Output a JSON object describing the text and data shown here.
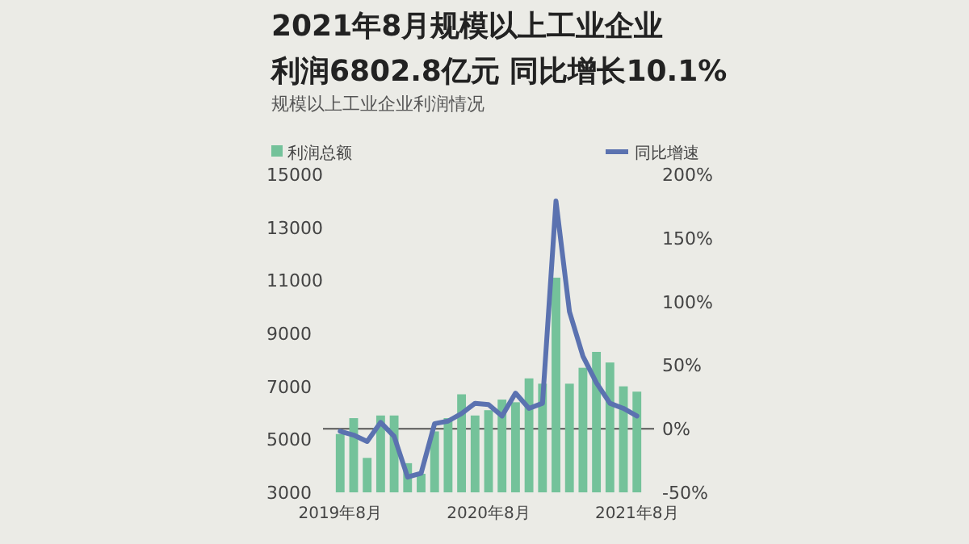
{
  "chart_data": {
    "type": "bar",
    "title": "2021年8月规模以上工业企业利润6802.8亿元 同比增长10.1%",
    "subtitle": "规模以上工业企业利润情况",
    "categories": [
      "2019年8月",
      null,
      null,
      null,
      null,
      null,
      null,
      null,
      null,
      null,
      null,
      "2020年8月",
      null,
      null,
      null,
      null,
      null,
      null,
      null,
      null,
      null,
      null,
      "2021年8月"
    ],
    "series": [
      {
        "name": "利润总额",
        "color": "#74c29a",
        "values": [
          5200,
          5800,
          4300,
          5900,
          5900,
          4100,
          3700,
          5300,
          5800,
          6700,
          5900,
          6100,
          6500,
          6400,
          7300,
          7100,
          11100,
          7100,
          7700,
          8300,
          7900,
          7000,
          6800
        ]
      },
      {
        "name": "同比增速",
        "type": "line",
        "axis": "y2",
        "color": "#5b72b0",
        "values": [
          -2,
          -5,
          -10,
          5,
          -6,
          -38,
          -35,
          4,
          6,
          12,
          20,
          19,
          10,
          28,
          16,
          20,
          179,
          92,
          57,
          36,
          20,
          16,
          10
        ]
      }
    ],
    "ylim": [
      3000,
      15000
    ],
    "yticks": [
      3000,
      5000,
      7000,
      9000,
      11000,
      13000,
      15000
    ],
    "y2lim": [
      -50,
      200
    ],
    "y2ticks": [
      {
        "value": -50,
        "label": "-50%"
      },
      {
        "value": 0,
        "label": "0%"
      },
      {
        "value": 50,
        "label": "50%"
      },
      {
        "value": 100,
        "label": "100%"
      },
      {
        "value": 150,
        "label": "150%"
      },
      {
        "value": 200,
        "label": "200%"
      }
    ],
    "ref_lines": [
      {
        "axis": "y2",
        "value": 0,
        "color": "#555555"
      }
    ],
    "legend": "top",
    "grid": false,
    "marker": "none",
    "line_style": "solid"
  }
}
